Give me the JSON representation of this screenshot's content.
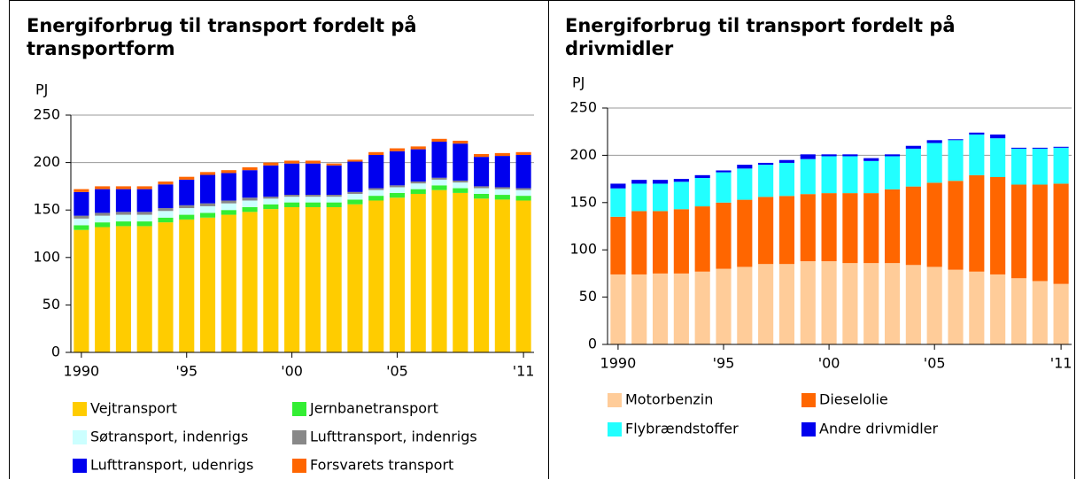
{
  "chart_data": [
    {
      "type": "stacked_bar",
      "title": "Energiforbrug til transport fordelt på transportform",
      "ylabel": "PJ",
      "categories": [
        "1990",
        null,
        null,
        null,
        null,
        "'95",
        null,
        null,
        null,
        null,
        "'00",
        null,
        null,
        null,
        null,
        "'05",
        null,
        null,
        null,
        null,
        null,
        "'11"
      ],
      "ylim": [
        0,
        250
      ],
      "yticks": [
        0,
        50,
        100,
        150,
        200,
        250
      ],
      "grid": true,
      "series": [
        {
          "name": "Vejtransport",
          "color": "#ffcc00",
          "values": [
            129,
            132,
            133,
            133,
            137,
            140,
            142,
            145,
            148,
            151,
            153,
            153,
            153,
            156,
            160,
            163,
            167,
            171,
            168,
            162,
            161,
            160
          ]
        },
        {
          "name": "Jernbanetransport",
          "color": "#33ee33",
          "values": [
            5,
            5,
            5,
            5,
            5,
            5,
            5,
            5,
            5,
            5,
            5,
            5,
            5,
            5,
            5,
            5,
            5,
            5,
            5,
            5,
            5,
            5
          ]
        },
        {
          "name": "Søtransport, indenrigs",
          "color": "#ccffff",
          "values": [
            7,
            7,
            7,
            7,
            7,
            7,
            7,
            7,
            7,
            6,
            6,
            6,
            6,
            6,
            6,
            6,
            6,
            6,
            6,
            6,
            6,
            6
          ]
        },
        {
          "name": "Lufttransport, indenrigs",
          "color": "#888888",
          "values": [
            3,
            3,
            3,
            3,
            3,
            3,
            3,
            3,
            3,
            2,
            2,
            2,
            2,
            2,
            2,
            2,
            2,
            2,
            2,
            2,
            2,
            2
          ]
        },
        {
          "name": "Lufttransport, udenrigs",
          "color": "#0000ee",
          "values": [
            25,
            25,
            24,
            24,
            25,
            27,
            30,
            29,
            29,
            33,
            33,
            33,
            31,
            32,
            35,
            36,
            34,
            38,
            39,
            31,
            33,
            35
          ]
        },
        {
          "name": "Forsvarets transport",
          "color": "#ff6600",
          "values": [
            3,
            3,
            3,
            3,
            3,
            3,
            3,
            3,
            3,
            3,
            3,
            3,
            2,
            2,
            3,
            3,
            3,
            3,
            3,
            3,
            3,
            3
          ]
        }
      ]
    },
    {
      "type": "stacked_bar",
      "title": "Energiforbrug til transport fordelt på drivmidler",
      "ylabel": "PJ",
      "categories": [
        "1990",
        null,
        null,
        null,
        null,
        "'95",
        null,
        null,
        null,
        null,
        "'00",
        null,
        null,
        null,
        null,
        "'05",
        null,
        null,
        null,
        null,
        null,
        "'11"
      ],
      "ylim": [
        0,
        250
      ],
      "yticks": [
        0,
        50,
        100,
        150,
        200,
        250
      ],
      "grid": true,
      "series": [
        {
          "name": "Motorbenzin",
          "color": "#ffcc99",
          "values": [
            74,
            74,
            75,
            75,
            77,
            80,
            82,
            85,
            85,
            88,
            88,
            86,
            86,
            86,
            84,
            82,
            79,
            77,
            74,
            70,
            67,
            64
          ]
        },
        {
          "name": "Dieselolie",
          "color": "#ff6600",
          "values": [
            61,
            67,
            66,
            68,
            69,
            70,
            71,
            71,
            72,
            71,
            72,
            74,
            74,
            78,
            83,
            89,
            94,
            102,
            103,
            99,
            102,
            106
          ]
        },
        {
          "name": "Flybrændstoffer",
          "color": "#22ffff",
          "values": [
            30,
            29,
            29,
            29,
            30,
            32,
            33,
            34,
            35,
            37,
            39,
            39,
            34,
            35,
            40,
            42,
            43,
            43,
            41,
            38,
            38,
            38
          ]
        },
        {
          "name": "Andre drivmidler",
          "color": "#0000ee",
          "values": [
            5,
            4,
            4,
            3,
            3,
            2,
            4,
            2,
            3,
            5,
            2,
            2,
            3,
            2,
            3,
            3,
            1,
            2,
            4,
            1,
            1,
            1
          ]
        }
      ]
    }
  ]
}
